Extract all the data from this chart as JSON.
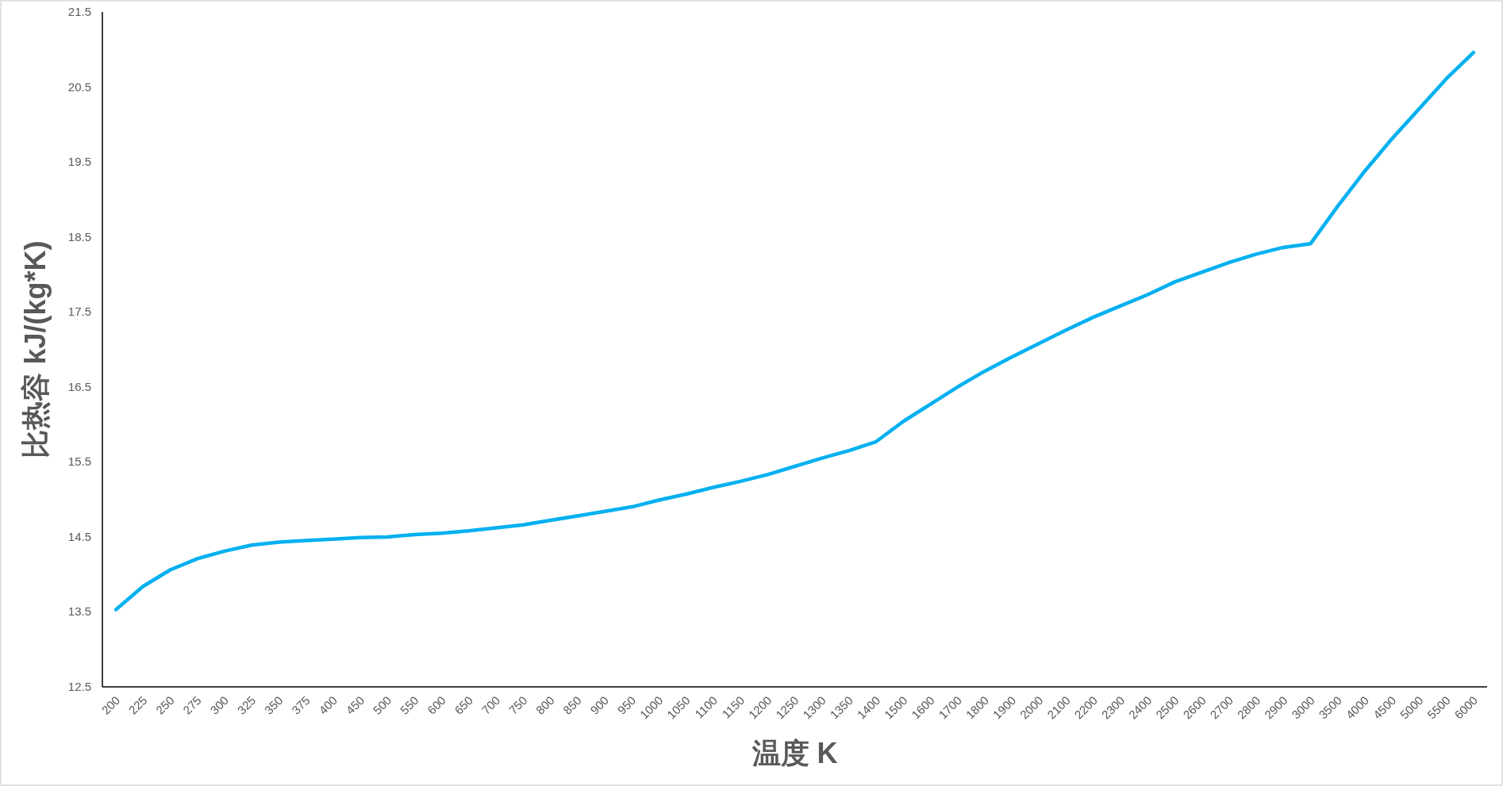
{
  "chart_data": {
    "type": "line",
    "xlabel": "温度 K",
    "ylabel": "比热容 kJ/(kg*K)",
    "categories": [
      "200",
      "225",
      "250",
      "275",
      "300",
      "325",
      "350",
      "375",
      "400",
      "450",
      "500",
      "550",
      "600",
      "650",
      "700",
      "750",
      "800",
      "850",
      "900",
      "950",
      "1000",
      "1050",
      "1100",
      "1150",
      "1200",
      "1250",
      "1300",
      "1350",
      "1400",
      "1500",
      "1600",
      "1700",
      "1800",
      "1900",
      "2000",
      "2100",
      "2200",
      "2300",
      "2400",
      "2500",
      "2600",
      "2700",
      "2800",
      "2900",
      "3000",
      "3500",
      "4000",
      "4500",
      "5000",
      "5500",
      "6000"
    ],
    "series": [
      {
        "color": "#00b0f0",
        "values": [
          13.53,
          13.84,
          14.06,
          14.21,
          14.31,
          14.39,
          14.43,
          14.45,
          14.47,
          14.49,
          14.5,
          14.53,
          14.55,
          14.58,
          14.62,
          14.66,
          14.72,
          14.78,
          14.84,
          14.9,
          14.99,
          15.07,
          15.16,
          15.24,
          15.33,
          15.44,
          15.55,
          15.65,
          15.77,
          16.04,
          16.27,
          16.5,
          16.71,
          16.9,
          17.08,
          17.26,
          17.43,
          17.58,
          17.73,
          17.9,
          18.03,
          18.16,
          18.27,
          18.36,
          18.41,
          18.91,
          19.38,
          19.81,
          20.21,
          20.61,
          20.96
        ]
      }
    ],
    "ylim": [
      12.5,
      21.5
    ],
    "yticks": [
      12.5,
      13.5,
      14.5,
      15.5,
      16.5,
      17.5,
      18.5,
      19.5,
      20.5,
      21.5
    ]
  }
}
